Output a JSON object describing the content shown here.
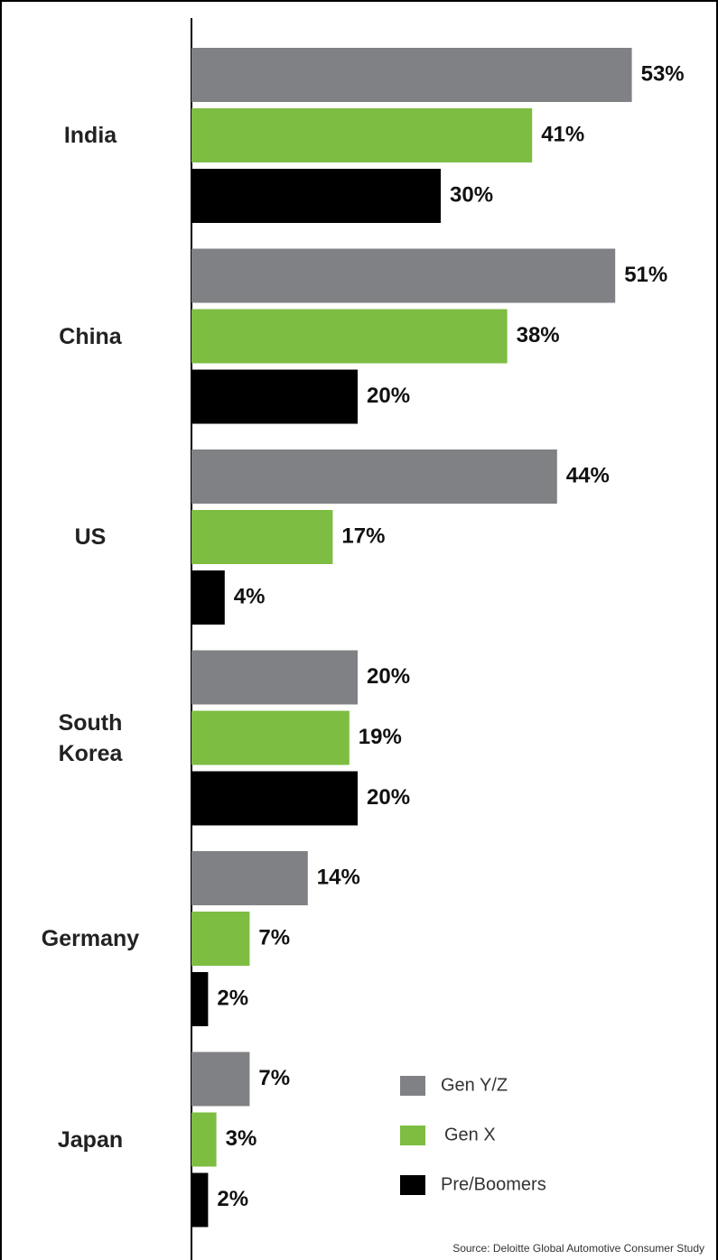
{
  "chart_data": {
    "type": "bar",
    "orientation": "horizontal",
    "categories": [
      "India",
      "China",
      "US",
      "South Korea",
      "Germany",
      "Japan"
    ],
    "series": [
      {
        "name": "Gen Y/Z",
        "color": "#808184",
        "values": [
          53,
          51,
          44,
          20,
          14,
          7
        ],
        "value_labels": [
          "53%",
          "51%",
          "44%",
          "20%",
          "14%",
          "7%"
        ]
      },
      {
        "name": "Gen X",
        "color": "#7dbd42",
        "values": [
          41,
          38,
          17,
          19,
          7,
          3
        ],
        "value_labels": [
          "41%",
          "38%",
          "17%",
          "19%",
          "7%",
          "3%"
        ]
      },
      {
        "name": "Pre/Boomers",
        "color": "#000000",
        "values": [
          30,
          20,
          4,
          20,
          2,
          2
        ],
        "value_labels": [
          "30%",
          "20%",
          "4%",
          "20%",
          "2%",
          "2%"
        ]
      }
    ],
    "source": "Source: Deloitte Global Automotive Consumer Study"
  }
}
